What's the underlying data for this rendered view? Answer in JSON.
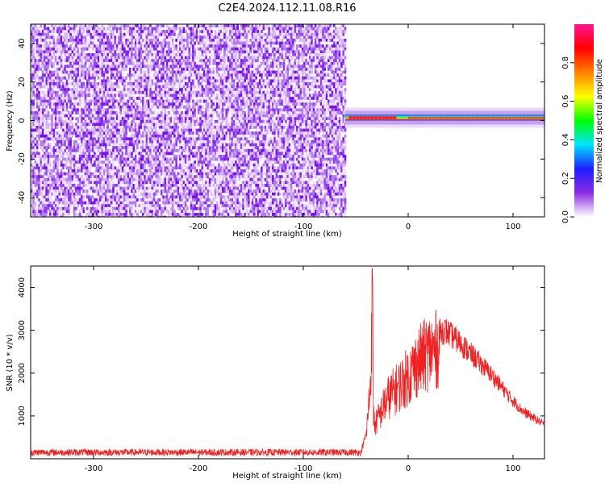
{
  "title": "C2E4.2024.112.11.08.R16",
  "chart_data": [
    {
      "type": "heatmap",
      "xlabel": "Height of straight line (km)",
      "ylabel": "Frequency (Hz)",
      "xlim": [
        -360,
        130
      ],
      "ylim": [
        -50,
        50
      ],
      "xticks": [
        -300,
        -200,
        -100,
        0,
        100
      ],
      "yticks": [
        -40,
        -20,
        0,
        20,
        40
      ],
      "noise_region_x": [
        -360,
        -60
      ],
      "signal_band_y": [
        0,
        3
      ],
      "signal_start_x": -60,
      "colorbar": {
        "label": "Normalized spectral amplitude",
        "range": [
          0,
          1
        ],
        "ticks": [
          "0.0",
          "0.2",
          "0.4",
          "0.6",
          "0.8"
        ],
        "colors": [
          "#ffffff",
          "#8a2be2",
          "#1e1eff",
          "#00e5ff",
          "#00ff00",
          "#ffff00",
          "#ff8000",
          "#ff0000",
          "#ff1493"
        ]
      },
      "grid": false
    },
    {
      "type": "line",
      "xlabel": "Height of straight line (km)",
      "ylabel": "SNR (10 * v/v)",
      "xlim": [
        -360,
        130
      ],
      "ylim": [
        0,
        4500
      ],
      "xticks": [
        -300,
        -200,
        -100,
        0,
        100
      ],
      "yticks": [
        1000,
        2000,
        3000,
        4000
      ],
      "color": "#ee2222",
      "grid": false,
      "envelope": {
        "x": [
          -360,
          -45,
          -40,
          -36,
          -34,
          -33,
          -32,
          -30,
          -25,
          -20,
          -10,
          0,
          10,
          20,
          30,
          35,
          40,
          50,
          60,
          70,
          80,
          90,
          100,
          110,
          120,
          130
        ],
        "y": [
          150,
          150,
          600,
          2000,
          4400,
          1200,
          900,
          1000,
          1300,
          1600,
          1900,
          2200,
          2600,
          2850,
          2950,
          3000,
          2900,
          2700,
          2450,
          2200,
          1950,
          1650,
          1350,
          1100,
          950,
          800
        ]
      }
    }
  ]
}
